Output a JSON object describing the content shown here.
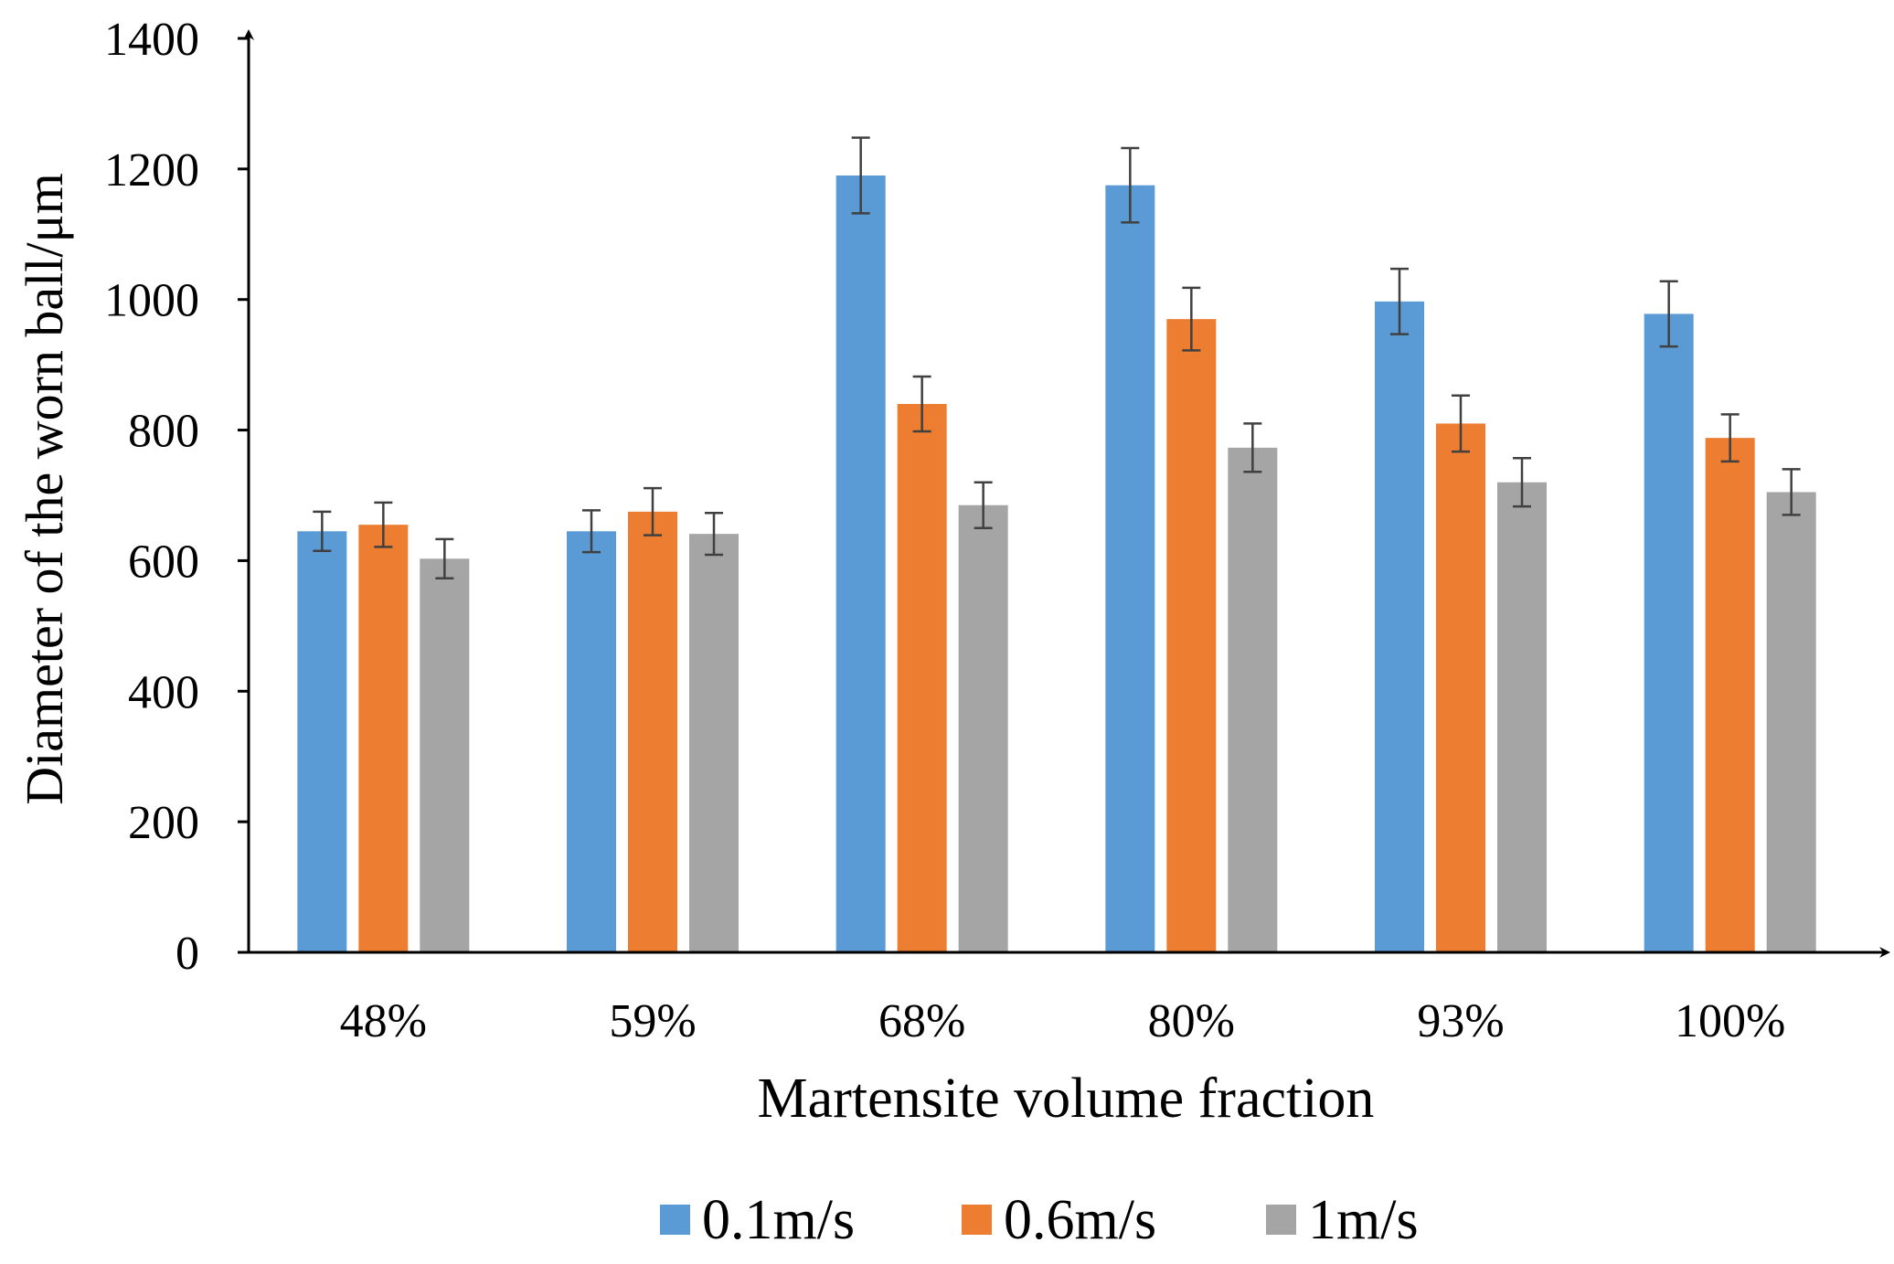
{
  "chart_data": {
    "type": "bar",
    "title": "",
    "xlabel": "Martensite volume fraction",
    "ylabel": "Diameter of the worn ball/μm",
    "categories": [
      "48%",
      "59%",
      "68%",
      "80%",
      "93%",
      "100%"
    ],
    "ylim": [
      0,
      1400
    ],
    "yticks": [
      0,
      200,
      400,
      600,
      800,
      1000,
      1200,
      1400
    ],
    "grid": false,
    "legend_position": "bottom",
    "series": [
      {
        "name": "0.1m/s",
        "color": "#5B9BD5",
        "values": [
          645,
          645,
          1190,
          1175,
          997,
          978
        ],
        "errors": [
          30,
          32,
          58,
          57,
          50,
          50
        ]
      },
      {
        "name": "0.6m/s",
        "color": "#ED7D31",
        "values": [
          655,
          675,
          840,
          970,
          810,
          788
        ],
        "errors": [
          34,
          36,
          42,
          48,
          43,
          36
        ]
      },
      {
        "name": "1m/s",
        "color": "#A5A5A5",
        "values": [
          603,
          641,
          685,
          773,
          720,
          705
        ],
        "errors": [
          30,
          32,
          35,
          37,
          37,
          35
        ]
      }
    ]
  }
}
